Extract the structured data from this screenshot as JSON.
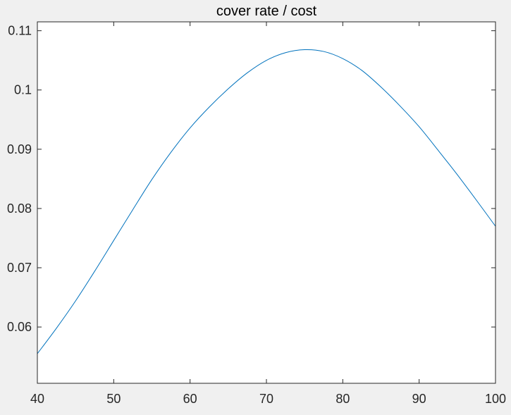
{
  "chart_data": {
    "type": "line",
    "title": "cover rate / cost",
    "xlabel": "",
    "ylabel": "",
    "xlim": [
      40,
      100
    ],
    "ylim": [
      0.0505,
      0.1115
    ],
    "xticks": [
      40,
      50,
      60,
      70,
      80,
      90,
      100
    ],
    "yticks": [
      0.06,
      0.07,
      0.08,
      0.09,
      0.1,
      0.11
    ],
    "xtick_labels": [
      "40",
      "50",
      "60",
      "70",
      "80",
      "90",
      "100"
    ],
    "ytick_labels": [
      "0.06",
      "0.07",
      "0.08",
      "0.09",
      "0.1",
      "0.11"
    ],
    "grid": false,
    "box": true,
    "series": [
      {
        "color": "#0072bd",
        "x": [
          40,
          42.5,
          45,
          47.5,
          50,
          52.5,
          55,
          57.5,
          60,
          62.5,
          65,
          67.5,
          70,
          72.5,
          75,
          77.5,
          80,
          82.5,
          85,
          87.5,
          90,
          92.5,
          95,
          97.5,
          100
        ],
        "y": [
          0.0555,
          0.0598,
          0.0644,
          0.0694,
          0.0746,
          0.0798,
          0.0849,
          0.0895,
          0.0936,
          0.0971,
          0.1002,
          0.1029,
          0.105,
          0.1063,
          0.1068,
          0.1065,
          0.1053,
          0.1033,
          0.1005,
          0.0973,
          0.0938,
          0.0898,
          0.0857,
          0.0814,
          0.077
        ]
      }
    ]
  }
}
